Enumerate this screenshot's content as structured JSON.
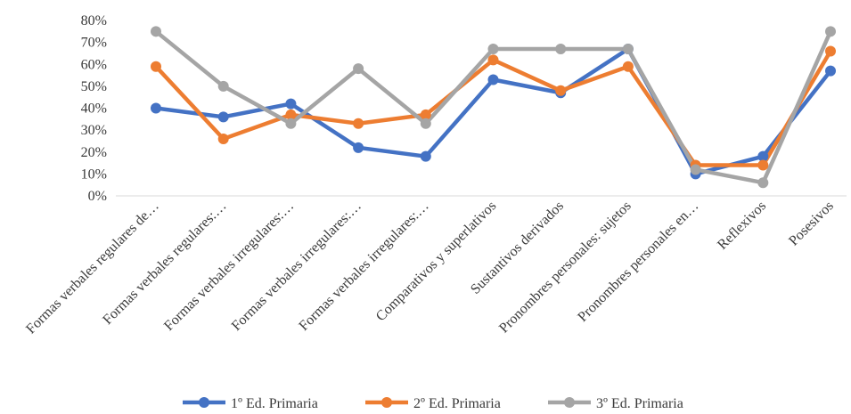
{
  "chart_data": {
    "type": "line",
    "categories": [
      "Formas verbales regulares de…",
      "Formas verbales regulares:…",
      "Formas verbales irregulares:…",
      "Formas verbales irregulares:…",
      "Formas verbales irregulares:…",
      "Comparativos y superlativos",
      "Sustantivos derivados",
      "Pronombres personales: sujetos",
      "Pronombres personales en…",
      "Reflexivos",
      "Posesivos"
    ],
    "y_ticks": [
      "0%",
      "10%",
      "20%",
      "30%",
      "40%",
      "50%",
      "60%",
      "70%",
      "80%"
    ],
    "ylim": [
      0,
      80
    ],
    "grid": false,
    "legend_position": "bottom",
    "series": [
      {
        "name": "1º Ed. Primaria",
        "color": "#4472C4",
        "values": [
          40,
          36,
          42,
          22,
          18,
          53,
          47,
          67,
          10,
          18,
          57
        ]
      },
      {
        "name": "2º Ed. Primaria",
        "color": "#ED7D31",
        "values": [
          59,
          26,
          37,
          33,
          37,
          62,
          48,
          59,
          14,
          14,
          66
        ]
      },
      {
        "name": "3º Ed. Primaria",
        "color": "#A5A5A5",
        "values": [
          75,
          50,
          33,
          58,
          33,
          67,
          67,
          67,
          12,
          6,
          75
        ]
      }
    ]
  }
}
